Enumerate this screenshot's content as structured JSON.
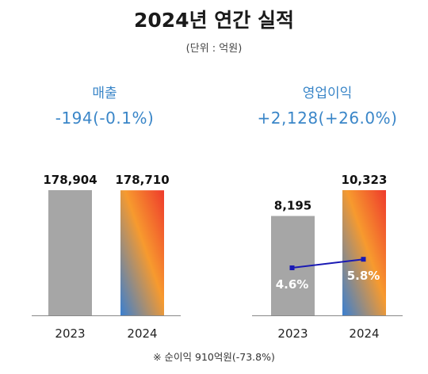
{
  "title": "2024년 연간 실적",
  "unit_note": "(단위 : 억원)",
  "footnote": "※ 순이익 910억원(-73.8%)",
  "colors": {
    "accent_blue": "#3a86c8",
    "bar_gray": "#a6a6a6",
    "gradient": [
      "#ee3a2c",
      "#f79a2e",
      "#3a7fd0"
    ],
    "margin_line": "#1a1ab4"
  },
  "chart_data": [
    {
      "type": "bar",
      "title": "매출",
      "change_text": "-194(-0.1%)",
      "categories": [
        "2023",
        "2024"
      ],
      "values": [
        178904,
        178710
      ],
      "value_labels": [
        "178,904",
        "178,710"
      ],
      "ylim": [
        0,
        178904
      ]
    },
    {
      "type": "bar",
      "title": "영업이익",
      "change_text": "+2,128(+26.0%)",
      "categories": [
        "2023",
        "2024"
      ],
      "values": [
        8195,
        10323
      ],
      "value_labels": [
        "8,195",
        "10,323"
      ],
      "ylim": [
        0,
        10323
      ],
      "overlay": {
        "type": "line",
        "values": [
          4.6,
          5.8
        ],
        "value_labels": [
          "4.6%",
          "5.8%"
        ]
      }
    }
  ]
}
